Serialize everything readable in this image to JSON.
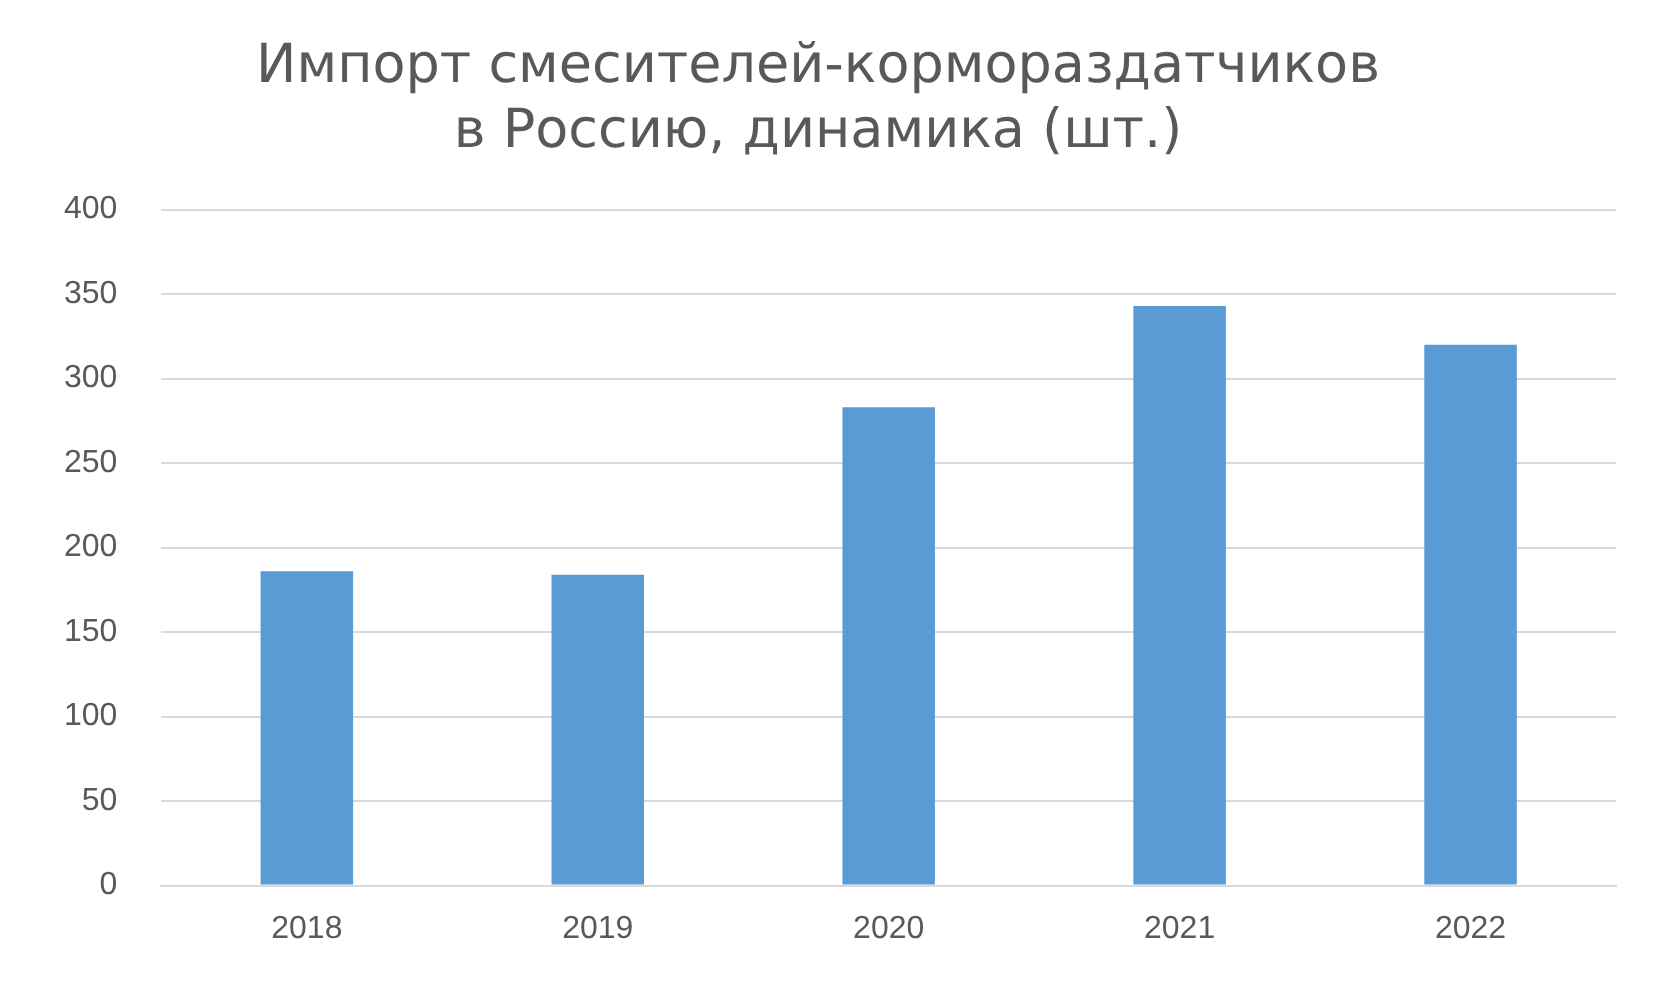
{
  "chart_data": {
    "type": "bar",
    "title": [
      "Импорт смесителей-кормораздатчиков",
      "в Россию, динамика (шт.)"
    ],
    "categories": [
      "2018",
      "2019",
      "2020",
      "2021",
      "2022"
    ],
    "values": [
      186,
      184,
      283,
      343,
      320
    ],
    "color": "#5b9bd5",
    "ylim": [
      0,
      400
    ],
    "yticks": [
      0,
      50,
      100,
      150,
      200,
      250,
      300,
      350,
      400
    ],
    "grid": "y"
  }
}
